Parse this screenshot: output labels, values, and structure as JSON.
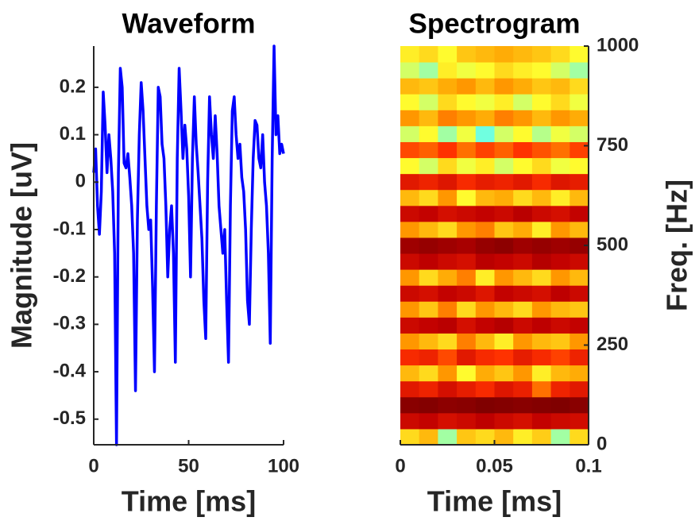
{
  "chart_data": [
    {
      "type": "line",
      "title": "Waveform",
      "x_label": "Time [ms]",
      "y_label": "Magnitude [uV]",
      "x": [
        0,
        1,
        2,
        3,
        4,
        5,
        6,
        7,
        8,
        9,
        10,
        11,
        12,
        13,
        14,
        15,
        16,
        17,
        18,
        19,
        20,
        21,
        22,
        23,
        24,
        25,
        26,
        27,
        28,
        29,
        30,
        31,
        32,
        33,
        34,
        35,
        36,
        37,
        38,
        39,
        40,
        41,
        42,
        43,
        44,
        45,
        46,
        47,
        48,
        49,
        50,
        51,
        52,
        53,
        54,
        55,
        56,
        57,
        58,
        59,
        60,
        61,
        62,
        63,
        64,
        65,
        66,
        67,
        68,
        69,
        70,
        71,
        72,
        73,
        74,
        75,
        76,
        77,
        78,
        79,
        80,
        81,
        82,
        83,
        84,
        85,
        86,
        87,
        88,
        89,
        90,
        91,
        92,
        93,
        94,
        95,
        96,
        97,
        98,
        99,
        100
      ],
      "series": [
        {
          "color": "#0000ff",
          "values": [
            0.02,
            0.07,
            -0.05,
            -0.11,
            -0.02,
            0.19,
            0.12,
            0.02,
            0.1,
            0.05,
            -0.02,
            -0.15,
            -0.554,
            0.02,
            0.24,
            0.2,
            0.04,
            0.03,
            0.06,
            0.01,
            -0.05,
            -0.15,
            -0.44,
            -0.08,
            0.1,
            0.21,
            0.15,
            0.05,
            -0.05,
            -0.1,
            -0.08,
            -0.22,
            -0.4,
            -0.05,
            0.2,
            0.18,
            0.08,
            0.05,
            -0.05,
            -0.2,
            -0.1,
            -0.05,
            -0.15,
            -0.38,
            0.05,
            0.24,
            0.15,
            0.05,
            0.12,
            0.07,
            -0.03,
            -0.2,
            0.05,
            0.18,
            0.08,
            0.02,
            -0.05,
            -0.12,
            -0.25,
            -0.33,
            0.0,
            0.18,
            0.1,
            0.05,
            0.14,
            0.06,
            -0.05,
            -0.1,
            -0.15,
            -0.1,
            -0.25,
            -0.38,
            -0.05,
            0.15,
            0.18,
            0.1,
            0.05,
            0.08,
            0.01,
            -0.02,
            -0.1,
            -0.25,
            -0.3,
            -0.1,
            0.05,
            0.13,
            0.12,
            0.05,
            0.03,
            0.1,
            0.0,
            -0.05,
            -0.15,
            -0.34,
            0.05,
            0.287,
            0.1,
            0.14,
            0.06,
            0.08,
            0.06
          ]
        }
      ],
      "xlim": [
        0,
        100
      ],
      "xticks": [
        0,
        50,
        100
      ],
      "ylim": [
        -0.554,
        0.287
      ],
      "yticks": [
        0.2,
        0.1,
        0,
        -0.1,
        -0.2,
        -0.3,
        -0.4,
        -0.5
      ]
    },
    {
      "type": "heatmap",
      "title": "Spectrogram",
      "x_label": "Time [ms]",
      "y_label": "Freq. [Hz]",
      "y_axis_side": "right",
      "colormap": [
        "#70ffe0",
        "#ffff30",
        "#ffa000",
        "#ff3000",
        "#c00000",
        "#800000"
      ],
      "x": [
        0.005,
        0.015,
        0.025,
        0.035,
        0.045,
        0.055,
        0.065,
        0.075,
        0.085,
        0.095
      ],
      "y": [
        20,
        60,
        100,
        140,
        180,
        220,
        260,
        300,
        340,
        380,
        420,
        460,
        500,
        540,
        580,
        620,
        660,
        700,
        740,
        780,
        820,
        860,
        900,
        940,
        980
      ],
      "values": [
        [
          0.45,
          0.5,
          0.3,
          0.48,
          0.45,
          0.5,
          0.42,
          0.47,
          0.3,
          0.45
        ],
        [
          0.8,
          0.82,
          0.78,
          0.8,
          0.83,
          0.8,
          0.78,
          0.82,
          0.8,
          0.79
        ],
        [
          0.95,
          0.96,
          0.94,
          0.95,
          0.97,
          0.96,
          0.95,
          0.96,
          0.97,
          0.95
        ],
        [
          0.75,
          0.72,
          0.78,
          0.74,
          0.7,
          0.76,
          0.73,
          0.6,
          0.72,
          0.75
        ],
        [
          0.5,
          0.45,
          0.55,
          0.4,
          0.52,
          0.48,
          0.55,
          0.42,
          0.5,
          0.52
        ],
        [
          0.7,
          0.72,
          0.65,
          0.75,
          0.7,
          0.68,
          0.74,
          0.7,
          0.66,
          0.72
        ],
        [
          0.55,
          0.5,
          0.45,
          0.58,
          0.5,
          0.42,
          0.55,
          0.5,
          0.48,
          0.55
        ],
        [
          0.8,
          0.82,
          0.84,
          0.78,
          0.82,
          0.85,
          0.8,
          0.83,
          0.8,
          0.82
        ],
        [
          0.55,
          0.48,
          0.58,
          0.45,
          0.55,
          0.5,
          0.45,
          0.55,
          0.5,
          0.48
        ],
        [
          0.8,
          0.78,
          0.82,
          0.8,
          0.76,
          0.82,
          0.8,
          0.78,
          0.83,
          0.8
        ],
        [
          0.55,
          0.45,
          0.52,
          0.58,
          0.42,
          0.55,
          0.5,
          0.45,
          0.55,
          0.5
        ],
        [
          0.8,
          0.83,
          0.8,
          0.78,
          0.84,
          0.82,
          0.8,
          0.85,
          0.82,
          0.8
        ],
        [
          0.9,
          0.92,
          0.9,
          0.88,
          0.92,
          0.94,
          0.9,
          0.92,
          0.9,
          0.92
        ],
        [
          0.55,
          0.5,
          0.45,
          0.55,
          0.58,
          0.48,
          0.52,
          0.42,
          0.55,
          0.5
        ],
        [
          0.8,
          0.82,
          0.78,
          0.8,
          0.82,
          0.8,
          0.84,
          0.8,
          0.78,
          0.82
        ],
        [
          0.5,
          0.45,
          0.55,
          0.4,
          0.5,
          0.52,
          0.45,
          0.5,
          0.42,
          0.5
        ],
        [
          0.75,
          0.72,
          0.76,
          0.7,
          0.74,
          0.72,
          0.75,
          0.7,
          0.76,
          0.74
        ],
        [
          0.4,
          0.35,
          0.45,
          0.38,
          0.42,
          0.35,
          0.4,
          0.45,
          0.38,
          0.4
        ],
        [
          0.65,
          0.62,
          0.68,
          0.6,
          0.66,
          0.62,
          0.68,
          0.64,
          0.6,
          0.66
        ],
        [
          0.35,
          0.4,
          0.3,
          0.38,
          0.25,
          0.35,
          0.4,
          0.32,
          0.38,
          0.35
        ],
        [
          0.55,
          0.5,
          0.58,
          0.55,
          0.52,
          0.58,
          0.55,
          0.5,
          0.55,
          0.52
        ],
        [
          0.4,
          0.35,
          0.45,
          0.4,
          0.38,
          0.42,
          0.35,
          0.4,
          0.45,
          0.38
        ],
        [
          0.5,
          0.48,
          0.52,
          0.55,
          0.5,
          0.55,
          0.52,
          0.48,
          0.5,
          0.45
        ],
        [
          0.35,
          0.3,
          0.42,
          0.38,
          0.4,
          0.45,
          0.42,
          0.4,
          0.35,
          0.3
        ],
        [
          0.42,
          0.45,
          0.4,
          0.48,
          0.5,
          0.52,
          0.5,
          0.48,
          0.45,
          0.4
        ]
      ],
      "xlim": [
        0,
        0.1
      ],
      "xticks": [
        0,
        0.05,
        0.1
      ],
      "ylim": [
        0,
        1000
      ],
      "yticks": [
        0,
        250,
        500,
        750,
        1000
      ]
    }
  ]
}
